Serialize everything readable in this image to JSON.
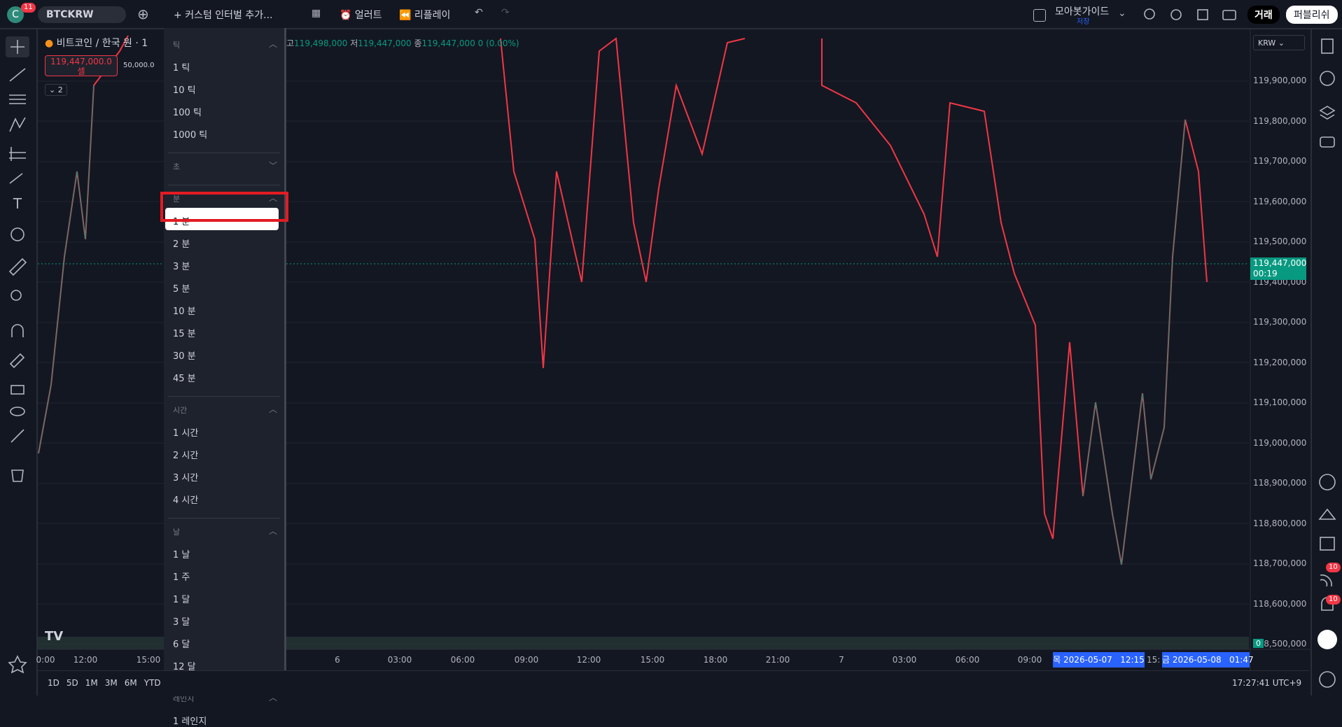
{
  "toolbar": {
    "badge": "11",
    "symbol": "BTCKRW",
    "add_interval": "커스텀 인터벌 추가...",
    "alert": "얼러트",
    "replay": "리플레이",
    "layout_name": "모아봇가이드",
    "layout_status": "저장",
    "trade": "거래",
    "publish": "퍼블리쉬"
  },
  "legend": {
    "name": "비트코인 / 한국 원 · 1",
    "high_label": "고",
    "high": "119,498,000",
    "low_label": "저",
    "low": "119,447,000",
    "close_label": "종",
    "close": "119,447,000",
    "change": "0 (0.00%)",
    "sell_price": "119,447,000.0",
    "sell_label": "셀",
    "spread": "50,000.0",
    "collapse": "2"
  },
  "currency": "KRW",
  "menu": {
    "sections": [
      {
        "title": "틱",
        "items": [
          "1 틱",
          "10 틱",
          "100 틱",
          "1000 틱"
        ]
      },
      {
        "title": "초",
        "items": []
      },
      {
        "title": "분",
        "items": [
          "1 분",
          "2 분",
          "3 분",
          "5 분",
          "10 분",
          "15 분",
          "30 분",
          "45 분"
        ]
      },
      {
        "title": "시간",
        "items": [
          "1 시간",
          "2 시간",
          "3 시간",
          "4 시간"
        ]
      },
      {
        "title": "날",
        "items": [
          "1 날",
          "1 주",
          "1 달",
          "3 달",
          "6 달",
          "12 달"
        ]
      },
      {
        "title": "레인지",
        "items": [
          "1 레인지"
        ]
      }
    ]
  },
  "price_axis": [
    "119,900,000",
    "119,800,000",
    "119,700,000",
    "119,600,000",
    "119,500,000",
    "119,400,000",
    "119,300,000",
    "119,200,000",
    "119,100,000",
    "119,000,000",
    "118,900,000",
    "118,800,000",
    "118,700,000",
    "118,600,000",
    "118,500,000"
  ],
  "current_price": {
    "price": "119,447,000",
    "countdown": "00:19",
    "volume": "0"
  },
  "time_axis": [
    "0:00",
    "12:00",
    "15:00",
    "6",
    "03:00",
    "06:00",
    "09:00",
    "12:00",
    "15:00",
    "18:00",
    "21:00",
    "7",
    "03:00",
    "06:00",
    "09:00"
  ],
  "crosshair": {
    "start": "목 2026-05-07   12:15",
    "middle": "15:",
    "end": "금 2026-05-08   01:47"
  },
  "bottom": {
    "ranges": [
      "1D",
      "5D",
      "1M",
      "3M",
      "6M",
      "YTD"
    ],
    "clock": "17:27:41 UTC+9"
  },
  "side_badges": [
    "10",
    "10"
  ]
}
